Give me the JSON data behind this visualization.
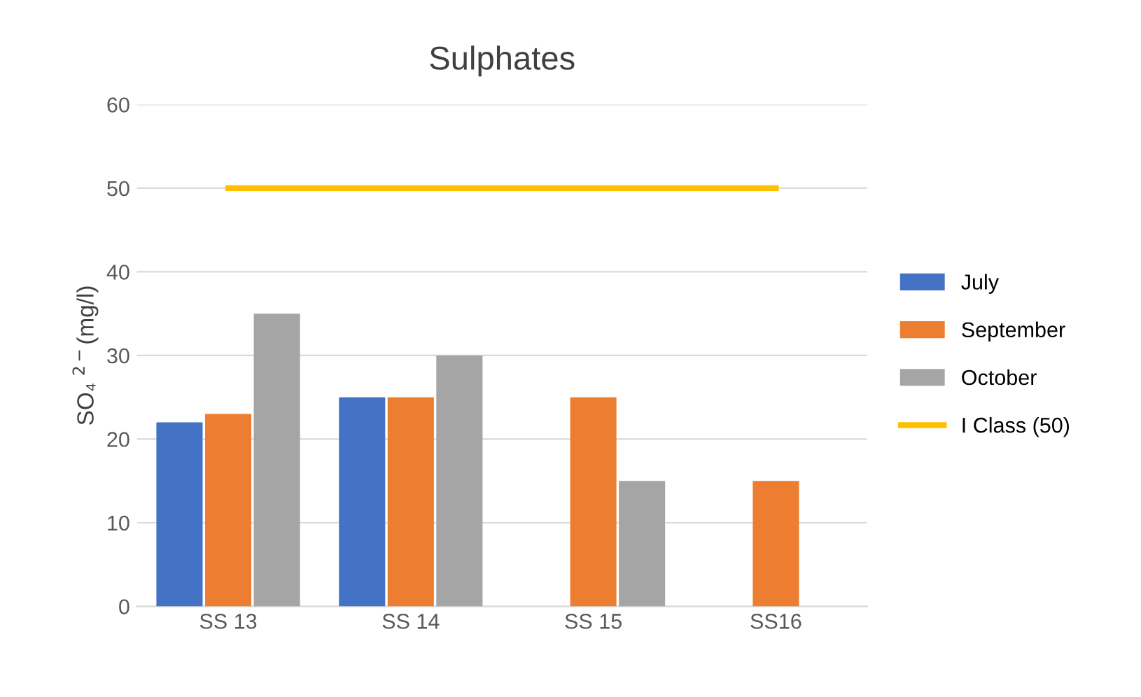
{
  "chart_data": {
    "type": "bar",
    "title": "Sulphates",
    "ylabel": "SO₄ $^{2−}$(mg/l)",
    "categories": [
      "SS 13",
      "SS 14",
      "SS 15",
      "SS16"
    ],
    "series": [
      {
        "name": "July",
        "color": "#4472c4",
        "values": [
          22,
          25,
          null,
          null
        ]
      },
      {
        "name": "September",
        "color": "#ed7d31",
        "values": [
          23,
          25,
          25,
          15
        ]
      },
      {
        "name": "October",
        "color": "#a5a5a5",
        "values": [
          35,
          30,
          15,
          null
        ]
      },
      {
        "name": "I Class (50)",
        "type": "line",
        "color": "#ffc000",
        "values": [
          50,
          50,
          50,
          50
        ],
        "marker": "none"
      }
    ],
    "ylim": [
      0,
      60
    ],
    "yticks": [
      0,
      10,
      20,
      30,
      40,
      50,
      60
    ],
    "grid": "y",
    "legend": "right"
  }
}
